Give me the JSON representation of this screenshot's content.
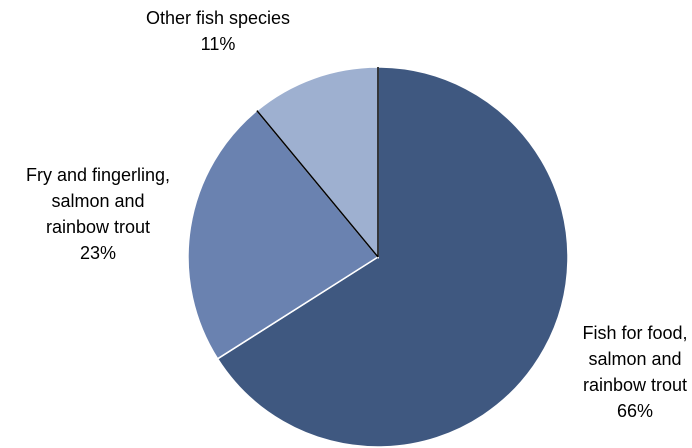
{
  "chart_data": {
    "type": "pie",
    "title": "",
    "slices": [
      {
        "label_lines": [
          "Fish for food,",
          "salmon and",
          "rainbow trout"
        ],
        "value": 66,
        "value_label": "66%",
        "color": "#3f5880"
      },
      {
        "label_lines": [
          "Fry and fingerling,",
          "salmon and",
          "rainbow trout"
        ],
        "value": 23,
        "value_label": "23%",
        "color": "#6a82b0"
      },
      {
        "label_lines": [
          "Other fish species"
        ],
        "value": 11,
        "value_label": "11%",
        "color": "#9eb0d0"
      }
    ],
    "start_angle_deg": 0,
    "direction": "clockwise",
    "legend": "none"
  }
}
